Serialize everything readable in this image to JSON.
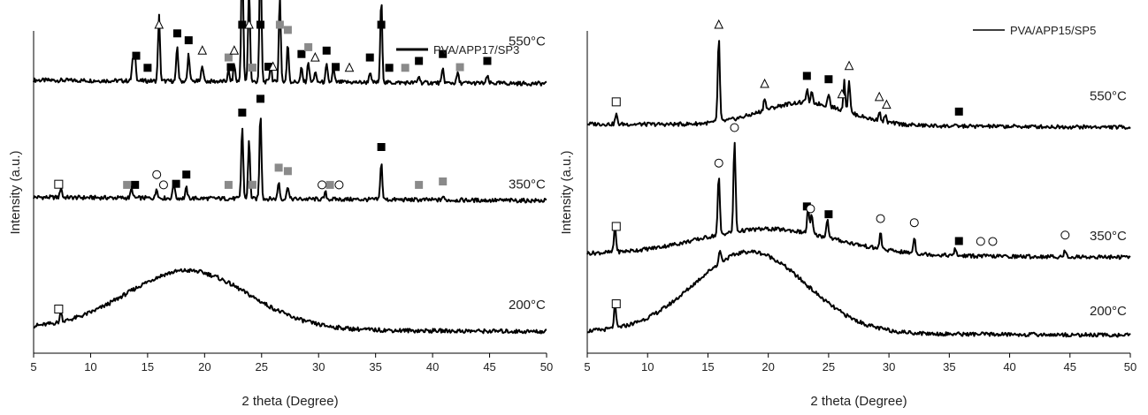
{
  "chart_data": [
    {
      "type": "line",
      "xlabel": "2 theta (Degree)",
      "ylabel": "Intensity (a.u.)",
      "xlim": [
        5,
        50
      ],
      "xticks": [
        5,
        10,
        15,
        20,
        25,
        30,
        35,
        40,
        45,
        50
      ],
      "legend": {
        "label": "PVA/APP17/SP3",
        "position": "top-right"
      },
      "series": [
        {
          "name": "550°C",
          "baseline": 0.78,
          "peaks": [
            {
              "x": 13.7,
              "h": 0.06
            },
            {
              "x": 13.9,
              "h": 0.07
            },
            {
              "x": 16.0,
              "h": 0.19
            },
            {
              "x": 17.6,
              "h": 0.1
            },
            {
              "x": 18.6,
              "h": 0.08
            },
            {
              "x": 19.8,
              "h": 0.05
            },
            {
              "x": 22.1,
              "h": 0.03
            },
            {
              "x": 22.6,
              "h": 0.05
            },
            {
              "x": 23.3,
              "h": 0.4
            },
            {
              "x": 23.9,
              "h": 0.28
            },
            {
              "x": 24.9,
              "h": 0.4
            },
            {
              "x": 25.8,
              "h": 0.05
            },
            {
              "x": 26.6,
              "h": 0.25
            },
            {
              "x": 27.3,
              "h": 0.11
            },
            {
              "x": 28.5,
              "h": 0.04
            },
            {
              "x": 29.1,
              "h": 0.06
            },
            {
              "x": 29.7,
              "h": 0.03
            },
            {
              "x": 30.7,
              "h": 0.05
            },
            {
              "x": 31.3,
              "h": 0.04
            },
            {
              "x": 34.5,
              "h": 0.03
            },
            {
              "x": 35.5,
              "h": 0.24
            },
            {
              "x": 38.8,
              "h": 0.02
            },
            {
              "x": 40.9,
              "h": 0.04
            },
            {
              "x": 42.2,
              "h": 0.03
            },
            {
              "x": 44.8,
              "h": 0.02
            }
          ],
          "markers": [
            {
              "x": 14.0,
              "shape": "square-black"
            },
            {
              "x": 15.0,
              "shape": "square-black"
            },
            {
              "x": 16.0,
              "shape": "triangle"
            },
            {
              "x": 17.6,
              "shape": "square-black"
            },
            {
              "x": 18.6,
              "shape": "square-black"
            },
            {
              "x": 19.8,
              "shape": "triangle"
            },
            {
              "x": 22.1,
              "shape": "square-gray"
            },
            {
              "x": 22.3,
              "shape": "square-black"
            },
            {
              "x": 22.6,
              "shape": "triangle"
            },
            {
              "x": 23.3,
              "shape": "square-black"
            },
            {
              "x": 23.9,
              "shape": "triangle"
            },
            {
              "x": 24.2,
              "shape": "square-gray"
            },
            {
              "x": 24.9,
              "shape": "square-black"
            },
            {
              "x": 25.6,
              "shape": "square-black"
            },
            {
              "x": 26.0,
              "shape": "triangle"
            },
            {
              "x": 26.6,
              "shape": "square-gray"
            },
            {
              "x": 27.3,
              "shape": "square-gray"
            },
            {
              "x": 28.5,
              "shape": "square-black"
            },
            {
              "x": 29.1,
              "shape": "square-gray"
            },
            {
              "x": 29.7,
              "shape": "triangle"
            },
            {
              "x": 30.7,
              "shape": "square-black"
            },
            {
              "x": 31.5,
              "shape": "square-black"
            },
            {
              "x": 32.7,
              "shape": "triangle"
            },
            {
              "x": 34.5,
              "shape": "square-black"
            },
            {
              "x": 35.5,
              "shape": "square-black"
            },
            {
              "x": 36.2,
              "shape": "square-black"
            },
            {
              "x": 37.6,
              "shape": "square-gray"
            },
            {
              "x": 38.8,
              "shape": "square-black"
            },
            {
              "x": 40.9,
              "shape": "square-black"
            },
            {
              "x": 42.4,
              "shape": "square-gray"
            },
            {
              "x": 44.8,
              "shape": "square-black"
            }
          ]
        },
        {
          "name": "350°C",
          "baseline": 0.44,
          "peaks": [
            {
              "x": 7.4,
              "h": 0.03
            },
            {
              "x": 13.6,
              "h": 0.03
            },
            {
              "x": 15.8,
              "h": 0.03
            },
            {
              "x": 17.3,
              "h": 0.05
            },
            {
              "x": 18.4,
              "h": 0.03
            },
            {
              "x": 23.3,
              "h": 0.21
            },
            {
              "x": 23.9,
              "h": 0.17
            },
            {
              "x": 24.9,
              "h": 0.25
            },
            {
              "x": 26.5,
              "h": 0.05
            },
            {
              "x": 27.3,
              "h": 0.04
            },
            {
              "x": 30.6,
              "h": 0.02
            },
            {
              "x": 35.5,
              "h": 0.11
            },
            {
              "x": 40.9,
              "h": 0.01
            }
          ],
          "markers": [
            {
              "x": 7.2,
              "shape": "square-open"
            },
            {
              "x": 13.2,
              "shape": "square-gray"
            },
            {
              "x": 13.9,
              "shape": "square-black"
            },
            {
              "x": 15.8,
              "shape": "circle"
            },
            {
              "x": 16.4,
              "shape": "circle"
            },
            {
              "x": 17.5,
              "shape": "square-black"
            },
            {
              "x": 18.4,
              "shape": "square-black"
            },
            {
              "x": 22.1,
              "shape": "square-gray"
            },
            {
              "x": 23.3,
              "shape": "square-black"
            },
            {
              "x": 24.2,
              "shape": "square-gray"
            },
            {
              "x": 24.9,
              "shape": "square-black"
            },
            {
              "x": 26.5,
              "shape": "square-gray"
            },
            {
              "x": 27.3,
              "shape": "square-gray"
            },
            {
              "x": 30.3,
              "shape": "circle"
            },
            {
              "x": 31.0,
              "shape": "square-gray"
            },
            {
              "x": 31.8,
              "shape": "circle"
            },
            {
              "x": 35.5,
              "shape": "square-black"
            },
            {
              "x": 38.8,
              "shape": "square-gray"
            },
            {
              "x": 40.9,
              "shape": "square-gray"
            }
          ]
        },
        {
          "name": "200°C",
          "baseline": 0.06,
          "hump": {
            "center": 18.5,
            "height": 0.17,
            "width": 7.5
          },
          "peaks": [
            {
              "x": 7.4,
              "h": 0.03
            }
          ],
          "markers": [
            {
              "x": 7.2,
              "shape": "square-open"
            }
          ]
        }
      ]
    },
    {
      "type": "line",
      "xlabel": "2 theta (Degree)",
      "ylabel": "Intensity (a.u.)",
      "xlim": [
        5,
        50
      ],
      "xticks": [
        5,
        10,
        15,
        20,
        25,
        30,
        35,
        40,
        45,
        50
      ],
      "legend": {
        "label": "PVA/APP15/SP5",
        "position": "top-right"
      },
      "series": [
        {
          "name": "550°C",
          "baseline": 0.7,
          "hump": {
            "center": 23,
            "height": 0.07,
            "width": 5
          },
          "peaks": [
            {
              "x": 7.4,
              "h": 0.03
            },
            {
              "x": 15.9,
              "h": 0.26
            },
            {
              "x": 19.7,
              "h": 0.04
            },
            {
              "x": 23.2,
              "h": 0.04
            },
            {
              "x": 23.6,
              "h": 0.03
            },
            {
              "x": 25.0,
              "h": 0.04
            },
            {
              "x": 26.3,
              "h": 0.09
            },
            {
              "x": 26.7,
              "h": 0.1
            },
            {
              "x": 29.2,
              "h": 0.03
            },
            {
              "x": 29.7,
              "h": 0.02
            }
          ],
          "markers": [
            {
              "x": 7.4,
              "shape": "square-open"
            },
            {
              "x": 15.9,
              "shape": "triangle"
            },
            {
              "x": 19.7,
              "shape": "triangle"
            },
            {
              "x": 23.2,
              "shape": "square-black"
            },
            {
              "x": 25.0,
              "shape": "square-black"
            },
            {
              "x": 26.1,
              "shape": "triangle"
            },
            {
              "x": 26.7,
              "shape": "triangle"
            },
            {
              "x": 29.2,
              "shape": "triangle"
            },
            {
              "x": 29.8,
              "shape": "triangle"
            },
            {
              "x": 35.8,
              "shape": "square-black"
            }
          ]
        },
        {
          "name": "350°C",
          "baseline": 0.3,
          "hump": {
            "center": 20,
            "height": 0.08,
            "width": 8
          },
          "peaks": [
            {
              "x": 7.3,
              "h": 0.08
            },
            {
              "x": 15.9,
              "h": 0.18
            },
            {
              "x": 17.2,
              "h": 0.28
            },
            {
              "x": 23.3,
              "h": 0.08
            },
            {
              "x": 23.6,
              "h": 0.06
            },
            {
              "x": 24.9,
              "h": 0.06
            },
            {
              "x": 29.3,
              "h": 0.05
            },
            {
              "x": 32.1,
              "h": 0.05
            },
            {
              "x": 35.5,
              "h": 0.02
            },
            {
              "x": 44.6,
              "h": 0.02
            }
          ],
          "markers": [
            {
              "x": 7.4,
              "shape": "square-open"
            },
            {
              "x": 15.9,
              "shape": "circle"
            },
            {
              "x": 17.2,
              "shape": "circle"
            },
            {
              "x": 23.2,
              "shape": "square-black"
            },
            {
              "x": 23.5,
              "shape": "circle"
            },
            {
              "x": 25.0,
              "shape": "square-black"
            },
            {
              "x": 29.3,
              "shape": "circle"
            },
            {
              "x": 32.1,
              "shape": "circle"
            },
            {
              "x": 35.8,
              "shape": "square-black"
            },
            {
              "x": 37.6,
              "shape": "circle"
            },
            {
              "x": 38.6,
              "shape": "circle"
            },
            {
              "x": 44.6,
              "shape": "circle"
            }
          ]
        },
        {
          "name": "200°C",
          "baseline": 0.06,
          "hump": {
            "center": 18.5,
            "height": 0.25,
            "width": 6.5
          },
          "peaks": [
            {
              "x": 7.3,
              "h": 0.07
            },
            {
              "x": 16.0,
              "h": 0.04
            }
          ],
          "markers": [
            {
              "x": 7.4,
              "shape": "square-open"
            }
          ]
        }
      ]
    }
  ]
}
